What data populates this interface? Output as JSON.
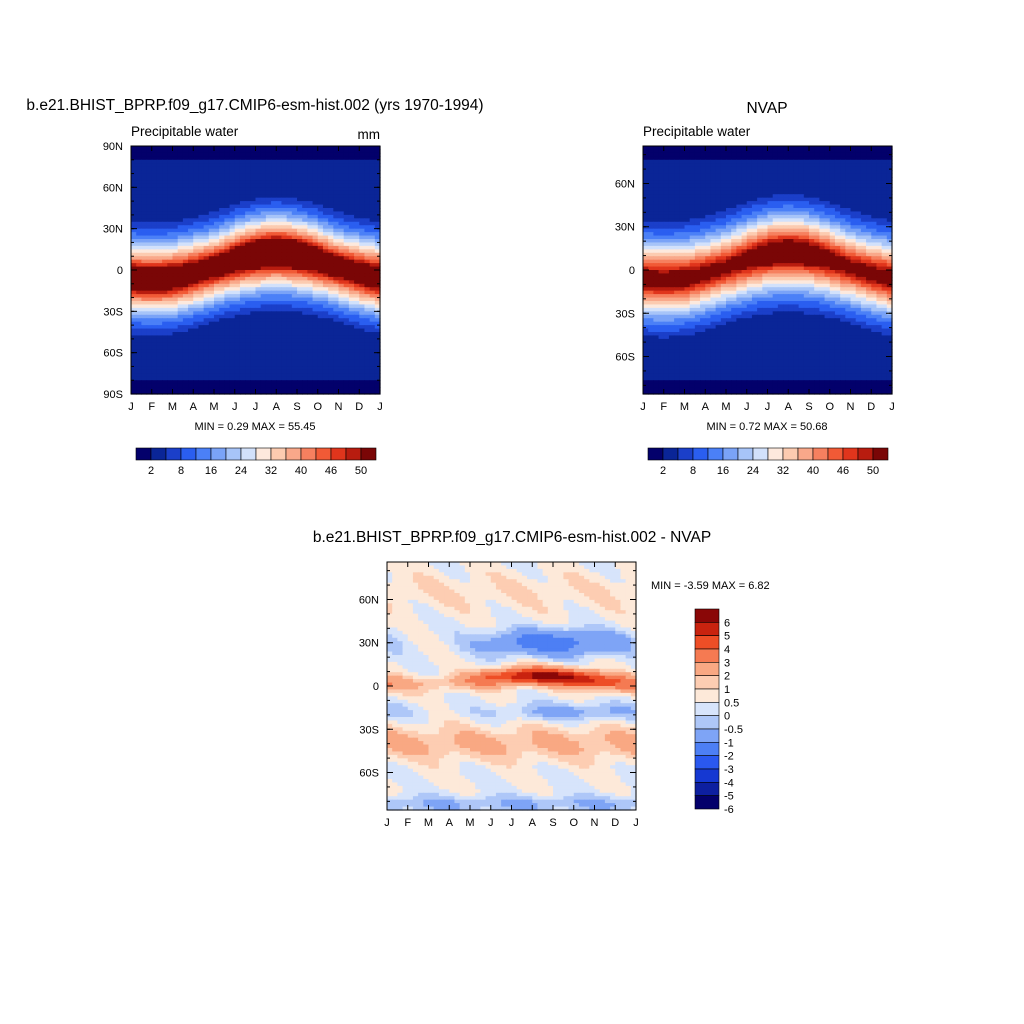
{
  "colors": {
    "cmap_blue_red": [
      "#03006b",
      "#0a2597",
      "#1b3fc9",
      "#2a5ef0",
      "#4b80f7",
      "#7aa3f7",
      "#a7c4f8",
      "#d2e1fb",
      "#fde9dd",
      "#fccbb0",
      "#f9a88a",
      "#f6805f",
      "#f15a36",
      "#e0351c",
      "#b81c0f",
      "#7a0606"
    ],
    "diff_levels_colors": [
      "#03006b",
      "#0d1fa0",
      "#1538d2",
      "#2a58ef",
      "#4d7ff4",
      "#7ea4f6",
      "#aec7f8",
      "#d7e4fb",
      "#fde9d9",
      "#fdcdb2",
      "#f9a883",
      "#f57a52",
      "#ee4e26",
      "#c9230f",
      "#8a0707"
    ]
  },
  "panels": [
    {
      "title": "b.e21.BHIST_BPRP.f09_g17.CMIP6-esm-hist.002 (yrs 1970-1994)",
      "left_label": "Precipitable water",
      "right_label": "mm",
      "stats": "MIN =   0.29 MAX =  55.45",
      "y_ticks": [
        "90N",
        "60N",
        "30N",
        "0",
        "30S",
        "60S",
        "90S"
      ]
    },
    {
      "title": "NVAP",
      "left_label": "Precipitable water",
      "right_label": "",
      "stats": "MIN =   0.72 MAX =  50.68",
      "y_ticks": [
        "60N",
        "30N",
        "0",
        "30S",
        "60S"
      ]
    },
    {
      "title": "b.e21.BHIST_BPRP.f09_g17.CMIP6-esm-hist.002 - NVAP",
      "left_label": "",
      "right_label": "",
      "stats": "MIN =  -3.59 MAX =   6.82",
      "y_ticks": [
        "60N",
        "30N",
        "0",
        "30S",
        "60S"
      ]
    }
  ],
  "x_ticks": [
    "J",
    "F",
    "M",
    "A",
    "M",
    "J",
    "J",
    "A",
    "S",
    "O",
    "N",
    "D",
    "J"
  ],
  "colorbar_labels": [
    "2",
    "8",
    "16",
    "24",
    "32",
    "40",
    "46",
    "50"
  ],
  "diff_colorbar_labels": [
    "6",
    "5",
    "4",
    "3",
    "2",
    "1",
    "0.5",
    "0",
    "-0.5",
    "-1",
    "-2",
    "-3",
    "-4",
    "-5",
    "-6"
  ],
  "chart_data": [
    {
      "type": "heatmap",
      "title": "b.e21.BHIST_BPRP.f09_g17.CMIP6-esm-hist.002 (yrs 1970-1994)",
      "subtitle": "Precipitable water",
      "units": "mm",
      "x": [
        "J",
        "F",
        "M",
        "A",
        "M",
        "J",
        "J",
        "A",
        "S",
        "O",
        "N",
        "D",
        "J"
      ],
      "y_range": [
        -90,
        90
      ],
      "levels": [
        2,
        5,
        8,
        12,
        16,
        20,
        24,
        28,
        32,
        36,
        40,
        43,
        46,
        48,
        50
      ],
      "min": 0.29,
      "max": 55.45
    },
    {
      "type": "heatmap",
      "title": "NVAP",
      "subtitle": "Precipitable water",
      "x": [
        "J",
        "F",
        "M",
        "A",
        "M",
        "J",
        "J",
        "A",
        "S",
        "O",
        "N",
        "D",
        "J"
      ],
      "y_range": [
        -90,
        90
      ],
      "levels": [
        2,
        5,
        8,
        12,
        16,
        20,
        24,
        28,
        32,
        36,
        40,
        43,
        46,
        48,
        50
      ],
      "min": 0.72,
      "max": 50.68
    },
    {
      "type": "heatmap",
      "title": "b.e21.BHIST_BPRP.f09_g17.CMIP6-esm-hist.002 - NVAP",
      "x": [
        "J",
        "F",
        "M",
        "A",
        "M",
        "J",
        "J",
        "A",
        "S",
        "O",
        "N",
        "D",
        "J"
      ],
      "y_range": [
        -90,
        90
      ],
      "levels": [
        -6,
        -5,
        -4,
        -3,
        -2,
        -1,
        -0.5,
        0,
        0.5,
        1,
        2,
        3,
        4,
        5,
        6
      ],
      "min": -3.59,
      "max": 6.82
    }
  ]
}
